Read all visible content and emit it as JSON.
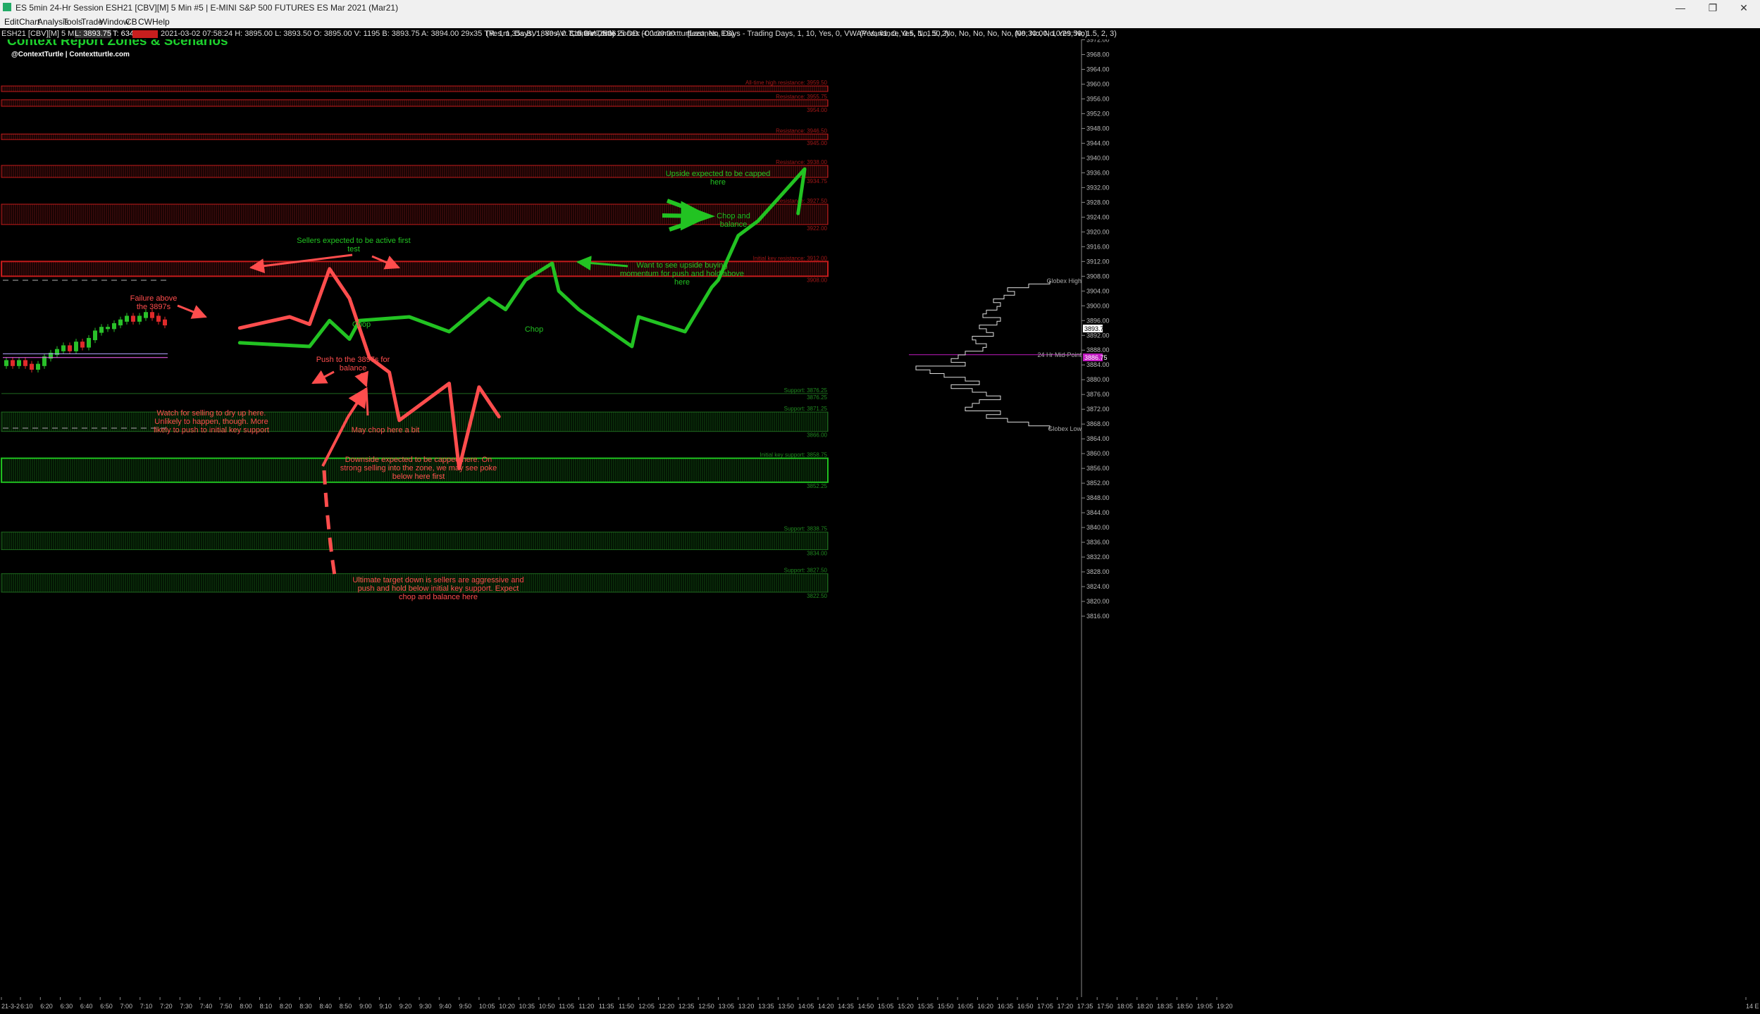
{
  "window": {
    "title": "ES 5min 24-Hr Session ESH21 [CBV][M]  5 Min  #5 | E-MINI S&P 500 FUTURES ES Mar 2021 (Mar21)",
    "minimize": "—",
    "restore": "❐",
    "close": "✕"
  },
  "menu": [
    "Edit",
    "Chart",
    "Analysis",
    "Tools",
    "Trade",
    "Window",
    "CB",
    "CW",
    "Help"
  ],
  "infobar": {
    "symbol": "ESH21 [CBV][M]  5 Min  #5",
    "last_label": "L: 3893.75",
    "volume": "T: 634",
    "ohlc": "2021-03-02  07:58:24 H: 3895.00 L: 3893.50 O: 3895.00 V: 1195 B: 3893.75 A: 3894.00 29x35 TR: 1m 35s BV: 880 AV: 315 DV: 252615 DD: -00:00:00",
    "study1": "(Yes, 1, Days, 1, Yes, 0.7, 0, Yes, No)",
    "study2": "ContextTurtle Zones   (C:\\contextturtlezones, ES)",
    "study3": "(Last, No, Days - Trading Days, 1, 10, Yes, 0, VWAP Variance, 0.5, 1, 1.5, 2)",
    "study4": "(Yes, #1, 0, Yes, No, 50, No, No, No, No, No, No, No, No, Yes, No)",
    "study5": "(09:30:00, 10:29:59, 1.5, 2, 3)"
  },
  "header": {
    "title": "Context Report Zones & Scenarios",
    "subtitle": "@ContextTurtle | Contextturtle.com"
  },
  "colors": {
    "green": "#22c322",
    "red": "#ff4d4d",
    "resistance": "#c41b1b",
    "support": "#1f8a1f",
    "title": "#1dd12d"
  },
  "chart_data": {
    "type": "line",
    "ylim": [
      3815,
      3975
    ],
    "y_ticks": [
      3972,
      3968,
      3964,
      3960,
      3956,
      3952,
      3948,
      3944,
      3940,
      3936,
      3932,
      3928,
      3924,
      3920,
      3916,
      3912,
      3908,
      3904,
      3900,
      3896,
      3892,
      3888,
      3884,
      3880,
      3876,
      3872,
      3868,
      3864,
      3860,
      3856,
      3852,
      3848,
      3844,
      3840,
      3836,
      3832,
      3828,
      3824,
      3820,
      3816
    ],
    "x_ticks": [
      "21-3-2",
      "6:10",
      "6:20",
      "6:30",
      "6:40",
      "6:50",
      "7:00",
      "7:10",
      "7:20",
      "7:30",
      "7:40",
      "7:50",
      "8:00",
      "8:10",
      "8:20",
      "8:30",
      "8:40",
      "8:50",
      "9:00",
      "9:10",
      "9:20",
      "9:30",
      "9:40",
      "9:50",
      "10:05",
      "10:20",
      "10:35",
      "10:50",
      "11:05",
      "11:20",
      "11:35",
      "11:50",
      "12:05",
      "12:20",
      "12:35",
      "12:50",
      "13:05",
      "13:20",
      "13:35",
      "13:50",
      "14:05",
      "14:20",
      "14:35",
      "14:50",
      "15:05",
      "15:20",
      "15:35",
      "15:50",
      "16:05",
      "16:20",
      "16:35",
      "16:50",
      "17:05",
      "17:20",
      "17:35",
      "17:50",
      "18:05",
      "18:20",
      "18:35",
      "18:50",
      "19:05",
      "19:20",
      "14 E"
    ],
    "price_label": "3893.75",
    "midpoint_label": "3886.75",
    "zones": [
      {
        "kind": "resistance",
        "top": 3959.5,
        "bottom": 3958.0,
        "label_top": "All-time high resistance: 3959.50",
        "label_bottom": ""
      },
      {
        "kind": "resistance",
        "top": 3955.75,
        "bottom": 3954.0,
        "label_top": "Resistance: 3955.75",
        "label_bottom": "3954.00"
      },
      {
        "kind": "resistance",
        "top": 3946.5,
        "bottom": 3945.0,
        "label_top": "Resistance: 3946.50",
        "label_bottom": "3945.00"
      },
      {
        "kind": "resistance",
        "top": 3938.0,
        "bottom": 3934.75,
        "label_top": "Resistance: 3938.00",
        "label_bottom": "3934.75"
      },
      {
        "kind": "resistance",
        "top": 3927.5,
        "bottom": 3922.0,
        "label_top": "Resistance: 3927.50",
        "label_bottom": "3922.00"
      },
      {
        "kind": "key-resistance",
        "top": 3912.0,
        "bottom": 3908.0,
        "label_top": "Initial key resistance: 3912.00",
        "label_bottom": "3908.00"
      },
      {
        "kind": "support",
        "top": 3876.25,
        "bottom": 3876.25,
        "label_top": "Support: 3876.25",
        "label_bottom": "3876.25"
      },
      {
        "kind": "support",
        "top": 3871.25,
        "bottom": 3866.0,
        "label_top": "Support: 3871.25",
        "label_bottom": "3866.00"
      },
      {
        "kind": "key-support",
        "top": 3858.75,
        "bottom": 3852.25,
        "label_top": "Initial key support: 3858.75",
        "label_bottom": "3852.25"
      },
      {
        "kind": "support",
        "top": 3838.75,
        "bottom": 3834.0,
        "label_top": "Support: 3838.75",
        "label_bottom": "3834.00"
      },
      {
        "kind": "support",
        "top": 3827.5,
        "bottom": 3822.5,
        "label_top": "Support: 3827.50",
        "label_bottom": "3822.50"
      }
    ],
    "series": [
      {
        "scenario": "bullish",
        "x": [
          "8:00",
          "8:25",
          "8:35",
          "8:45",
          "9:00",
          "9:15",
          "9:35",
          "9:55",
          "10:10",
          "10:25",
          "10:45",
          "11:05",
          "11:20",
          "11:45",
          "12:05",
          "12:25",
          "12:45",
          "13:05",
          "13:20",
          "13:35",
          "13:55",
          "14:05"
        ],
        "values": [
          3890,
          3889,
          3896,
          3891,
          3896,
          3897,
          3893,
          3902,
          3899,
          3907,
          3911.5,
          3904,
          3899,
          3889,
          3897,
          3893,
          3905,
          3907,
          3919,
          3923,
          3937,
          3925
        ]
      },
      {
        "scenario": "bearish",
        "x": [
          "8:00",
          "8:15",
          "8:25",
          "8:35",
          "8:45",
          "8:55",
          "9:05",
          "9:20",
          "9:35",
          "9:50",
          "10:05",
          "10:20"
        ],
        "values": [
          3894,
          3897,
          3895,
          3910,
          3902,
          3886,
          3882,
          3869,
          3879,
          3856,
          3878,
          3870
        ]
      }
    ],
    "volume_profile_labels": {
      "high": "Globex High",
      "mid": "24 Hr Mid-Point",
      "low": "Globex Low"
    }
  },
  "annotations": [
    {
      "text": "Failure above\nthe 3897s",
      "color": "red"
    },
    {
      "text": "Sellers expected to be active first\ntest",
      "color": "green"
    },
    {
      "text": "Chop",
      "color": "green"
    },
    {
      "text": "Chop",
      "color": "green"
    },
    {
      "text": "Upside expected to be capped\nhere",
      "color": "green"
    },
    {
      "text": "Chop and\nbalance",
      "color": "green"
    },
    {
      "text": "Want to see upside buying\nmomentum for push and hold above\nhere",
      "color": "green"
    },
    {
      "text": "Push to the 3897s for\nbalance",
      "color": "red"
    },
    {
      "text": "Watch for selling to dry up here.\nUnlikely to happen, though. More\nlikely to push to initial key support",
      "color": "red"
    },
    {
      "text": "May chop here a bit",
      "color": "red"
    },
    {
      "text": "Downside expected to be capped here. On\nstrong selling into the zone, we may see poke\nbelow here first",
      "color": "red"
    },
    {
      "text": "Ultimate target down is sellers are aggressive and\npush and hold below initial key support. Expect\nchop and balance here",
      "color": "red"
    }
  ]
}
